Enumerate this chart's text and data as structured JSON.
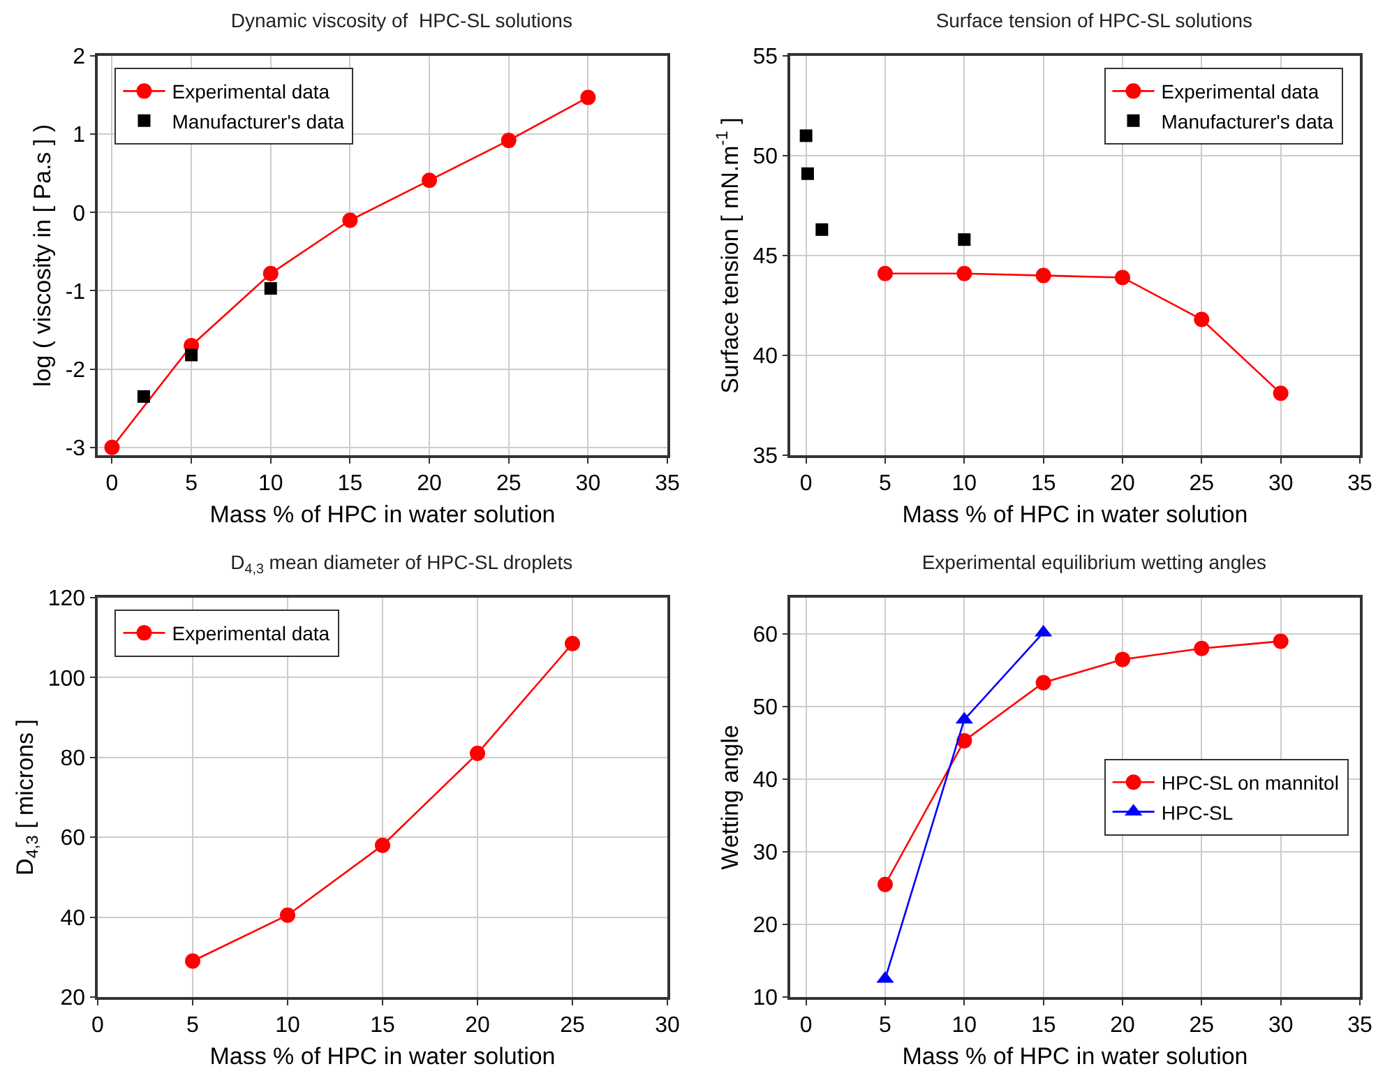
{
  "chart_data": [
    {
      "type": "line",
      "title": "Dynamic viscosity of  HPC-SL solutions",
      "xlabel": "Mass % of HPC in water solution",
      "ylabel": "log ( viscosity in [ Pa.s ] )",
      "xlim": [
        -0.9,
        35
      ],
      "xticks": [
        0,
        5,
        10,
        15,
        20,
        25,
        30,
        35
      ],
      "ylim": [
        -3.1,
        2
      ],
      "yticks": [
        -3,
        -2,
        -1,
        0,
        1,
        2
      ],
      "grid": true,
      "legend": "top left",
      "series": [
        {
          "name": "Experimental data",
          "marker": "circle",
          "color": "#ff0000",
          "x": [
            0,
            5,
            10,
            15,
            20,
            25,
            30
          ],
          "values": [
            -3,
            -1.7,
            -0.78,
            -0.1,
            0.41,
            0.92,
            1.47
          ]
        },
        {
          "name": "Manufacturer's data",
          "type": "scatter",
          "marker": "square",
          "color": "#000000",
          "x": [
            2,
            5,
            10
          ],
          "values": [
            -2.35,
            -1.82,
            -0.97
          ]
        }
      ]
    },
    {
      "type": "line",
      "title": "Surface tension of HPC-SL solutions",
      "xlabel": "Mass % of HPC in water solution",
      "ylabel": "Surface tension [ mN.m$^{-1}$ ]",
      "xlim": [
        -1,
        35
      ],
      "xticks": [
        0,
        5,
        10,
        15,
        20,
        25,
        30,
        35
      ],
      "ylim": [
        35,
        55
      ],
      "yticks": [
        35,
        40,
        45,
        50,
        55
      ],
      "grid": true,
      "legend": "top right",
      "series": [
        {
          "name": "Experimental data",
          "marker": "circle",
          "color": "#ff0000",
          "x": [
            5,
            10,
            15,
            20,
            25,
            30
          ],
          "values": [
            44.1,
            44.1,
            44,
            43.9,
            41.8,
            38.1
          ]
        },
        {
          "name": "Manufacturer's data",
          "type": "scatter",
          "marker": "square",
          "color": "#000000",
          "x": [
            0,
            0.1,
            1,
            10
          ],
          "values": [
            51,
            49.1,
            46.3,
            45.8
          ]
        }
      ]
    },
    {
      "type": "line",
      "title": "D$_{4,3}$ mean diameter of HPC-SL droplets",
      "xlabel": "Mass % of HPC in water solution",
      "ylabel": "D$_{4,3}$ [ microns ]",
      "xlim": [
        0,
        30
      ],
      "xticks": [
        0,
        5,
        10,
        15,
        20,
        25,
        30
      ],
      "ylim": [
        20,
        120
      ],
      "yticks": [
        20,
        40,
        60,
        80,
        100,
        120
      ],
      "grid": true,
      "legend": "top left",
      "series": [
        {
          "name": "Experimental data",
          "marker": "circle",
          "color": "#ff0000",
          "x": [
            5,
            10,
            15,
            20,
            25
          ],
          "values": [
            29,
            40.5,
            58,
            81,
            108.5
          ]
        }
      ]
    },
    {
      "type": "line",
      "title": "Experimental equilibrium wetting angles",
      "xlabel": "Mass % of HPC in water solution",
      "ylabel": "Wetting angle",
      "xlim": [
        -1,
        35
      ],
      "xticks": [
        0,
        5,
        10,
        15,
        20,
        25,
        30,
        35
      ],
      "ylim": [
        10,
        65
      ],
      "yticks": [
        10,
        20,
        30,
        40,
        50,
        60
      ],
      "grid": true,
      "legend": "right",
      "series": [
        {
          "name": "HPC-SL on mannitol",
          "marker": "circle",
          "color": "#ff0000",
          "x": [
            5,
            10,
            15,
            20,
            25,
            30
          ],
          "values": [
            25.5,
            45.3,
            53.3,
            56.5,
            58,
            59
          ]
        },
        {
          "name": "HPC-SL",
          "marker": "triangle",
          "color": "#0000ff",
          "x": [
            5,
            10,
            15
          ],
          "values": [
            12.5,
            48.2,
            60.2
          ]
        }
      ]
    }
  ]
}
